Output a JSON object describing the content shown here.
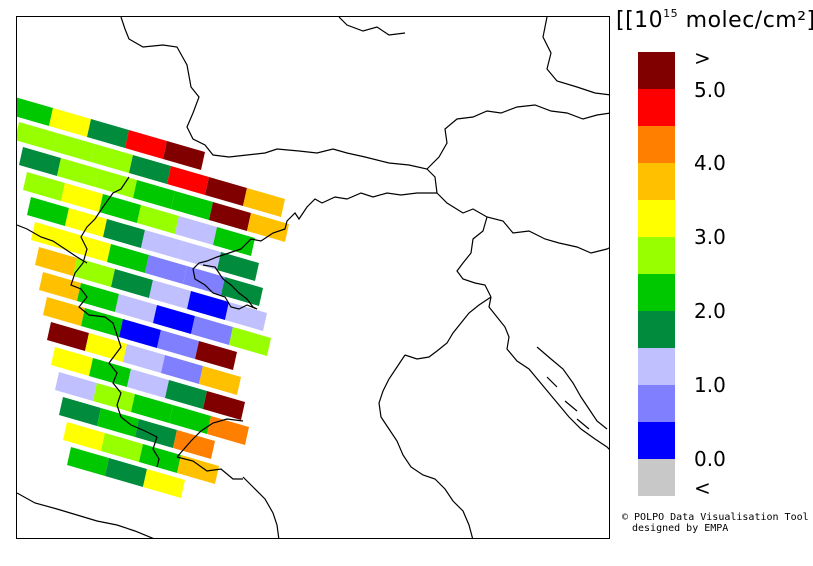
{
  "legend": {
    "unit_open": "[10",
    "unit_exp": "15",
    "unit_rest": " molec/cm²]",
    "labels": [
      ">",
      "5.0",
      "4.0",
      "3.0",
      "2.0",
      "1.0",
      "0.0",
      "<"
    ],
    "colors": [
      "#800000",
      "#ff0000",
      "#ff8000",
      "#ffc000",
      "#ffff00",
      "#98ff00",
      "#00c800",
      "#008c3c",
      "#c0c0ff",
      "#8080ff",
      "#0000ff",
      "#c8c8c8"
    ]
  },
  "credit": {
    "line1": "© POLPO Data Visualisation Tool",
    "line2": "designed by EMPA"
  }
}
